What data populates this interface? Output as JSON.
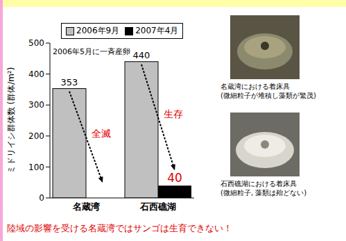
{
  "chart_data": {
    "type": "bar",
    "categories": [
      "名蔵湾",
      "石西礁湖"
    ],
    "series": [
      {
        "name": "2006年9月",
        "color": "#c0c0c0",
        "values": [
          353,
          440
        ]
      },
      {
        "name": "2007年4月",
        "color": "#000000",
        "values": [
          0,
          40
        ]
      }
    ],
    "ylabel": "ミドリイシ群体数 (群体/m²)",
    "ylim": [
      0,
      500
    ],
    "yticks": [
      0,
      100,
      200,
      300,
      400,
      500
    ],
    "grid": false,
    "legend": "upper center",
    "data_labels": true,
    "annotations": [
      {
        "text": "2006年5月に一斉産卵"
      },
      {
        "text": "全滅",
        "category": "名蔵湾"
      },
      {
        "text": "生存",
        "category": "石西礁湖"
      }
    ]
  },
  "photos": [
    {
      "caption": "名蔵湾における着床具",
      "note": "(微細粒子が堆積し藻類が繁茂)"
    },
    {
      "caption": "石西礁湖における着床具",
      "note": "(微細粒子, 藻類は殆どない)"
    }
  ],
  "conclusion": "陸域の影響を受ける名蔵湾ではサンゴは生育できない！"
}
